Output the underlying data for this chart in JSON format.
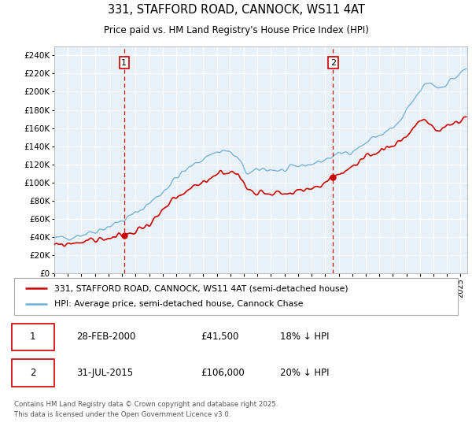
{
  "title1": "331, STAFFORD ROAD, CANNOCK, WS11 4AT",
  "title2": "Price paid vs. HM Land Registry's House Price Index (HPI)",
  "hpi_label": "HPI: Average price, semi-detached house, Cannock Chase",
  "price_label": "331, STAFFORD ROAD, CANNOCK, WS11 4AT (semi-detached house)",
  "annotation1_date": "28-FEB-2000",
  "annotation1_price": "£41,500",
  "annotation1_hpi": "18% ↓ HPI",
  "annotation2_date": "31-JUL-2015",
  "annotation2_price": "£106,000",
  "annotation2_hpi": "20% ↓ HPI",
  "footnote": "Contains HM Land Registry data © Crown copyright and database right 2025.\nThis data is licensed under the Open Government Licence v3.0.",
  "hpi_color": "#6baed6",
  "price_color": "#cc0000",
  "annotation_color": "#cc0000",
  "plot_bg": "#e8f0f8",
  "ylim_min": 0,
  "ylim_max": 250000,
  "ytick_step": 20000,
  "sale1_year": 2000,
  "sale1_month": 2,
  "sale1_value": 41500,
  "sale2_year": 2015,
  "sale2_month": 7,
  "sale2_value": 106000
}
